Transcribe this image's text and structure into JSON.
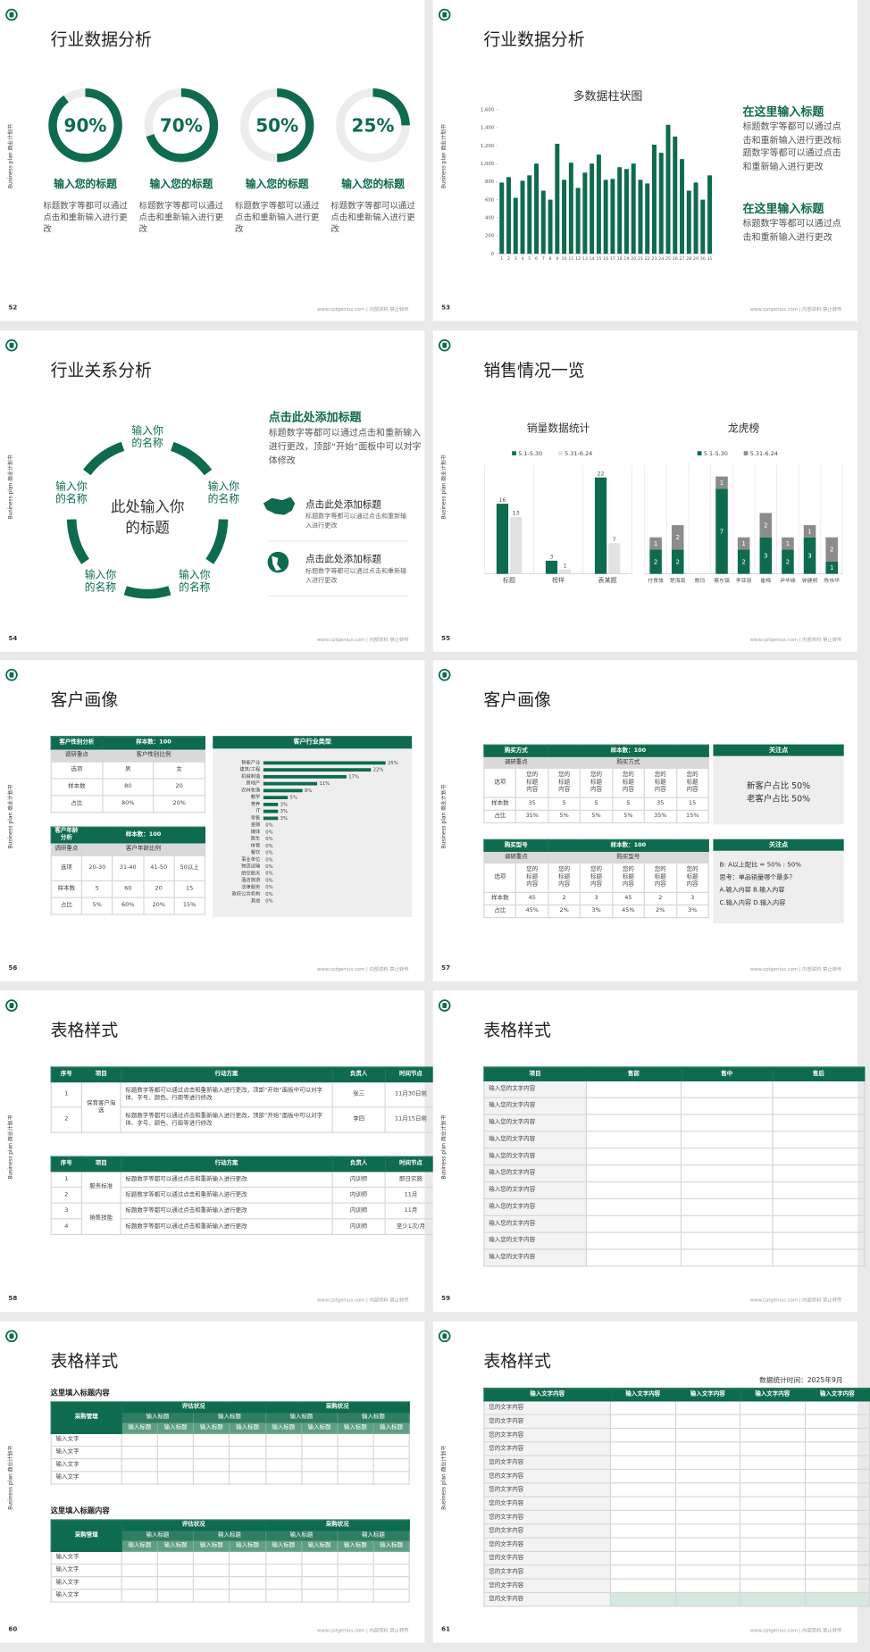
{
  "common": {
    "side_label": "Business plan 商业计划书",
    "footer": "www.cptgenius.com | 内部资料 禁止转传"
  },
  "slides": [
    {
      "page": 52,
      "title": "行业数据分析",
      "items": [
        {
          "title": "输入您的标题",
          "text": "标题数字等都可以通过点击和重新输入进行更改"
        },
        {
          "title": "输入您的标题",
          "text": "标题数字等都可以通过点击和重新输入进行更改"
        },
        {
          "title": "输入您的标题",
          "text": "标题数字等都可以通过点击和重新输入进行更改"
        },
        {
          "title": "输入您的标题",
          "text": "标题数字等都可以通过点击和重新输入进行更改"
        }
      ]
    },
    {
      "page": 53,
      "title": "行业数据分析",
      "blocks": [
        {
          "title": "在这里输入标题",
          "text": "标题数字等都可以通过点击和重新输入进行更改标题数字等都可以通过点击和重新输入进行更改"
        },
        {
          "title": "在这里输入标题",
          "text": "标题数字等都可以通过点击和重新输入进行更改"
        }
      ]
    },
    {
      "page": 54,
      "title": "行业关系分析",
      "center": "此处输入你的标题",
      "nodes": [
        "输入你的名称",
        "输入你的名称",
        "输入你的名称",
        "输入你的名称",
        "输入你的名称"
      ],
      "heading": "点击此处添加标题",
      "text": "标题数字等都可以通过点击和重新输入进行更改，顶部“开始”面板中可以对字体修改",
      "items": [
        {
          "title": "点击此处添加标题",
          "text": "标题数字等都可以通过点击和重新输入进行更改"
        },
        {
          "title": "点击此处添加标题",
          "text": "标题数字等都可以通过点击和重新输入进行更改"
        }
      ]
    },
    {
      "page": 55,
      "title": "销售情况一览"
    },
    {
      "page": 56,
      "title": "客户画像",
      "tables": [
        {
          "name": "客户性别分析",
          "sample": "样本数：100",
          "focus_label": "调研重点",
          "focus": "客户性别比例",
          "rows": [
            [
              "选项",
              "男",
              "女"
            ],
            [
              "样本数",
              "80",
              "20"
            ],
            [
              "占比",
              "80%",
              "20%"
            ]
          ]
        },
        {
          "name": "客户年龄分析",
          "sample": "样本数：100",
          "focus_label": "调研重点",
          "focus": "客户年龄比例",
          "rows": [
            [
              "选项",
              "20-30",
              "31-40",
              "41-50",
              "50以上"
            ],
            [
              "样本数",
              "5",
              "60",
              "20",
              "15"
            ],
            [
              "占比",
              "5%",
              "60%",
              "20%",
              "15%"
            ]
          ]
        }
      ]
    },
    {
      "page": 57,
      "title": "客户画像",
      "tables": [
        {
          "name": "购买方式",
          "sample": "样本数：100",
          "focus_label": "调研重点",
          "focus": "购买方式",
          "rows": [
            [
              "选项",
              "您的标题内容",
              "您的标题内容",
              "您的标题内容",
              "您的标题内容",
              "您的标题内容",
              "您的标题内容"
            ],
            [
              "样本数",
              "35",
              "5",
              "5",
              "5",
              "35",
              "15"
            ],
            [
              "占比",
              "35%",
              "5%",
              "5%",
              "5%",
              "35%",
              "15%"
            ]
          ]
        },
        {
          "name": "购买型号",
          "sample": "样本数：100",
          "focus_label": "调研重点",
          "focus": "购买型号",
          "rows": [
            [
              "选项",
              "您的标题内容",
              "您的标题内容",
              "您的标题内容",
              "您的标题内容",
              "您的标题内容",
              "您的标题内容"
            ],
            [
              "样本数",
              "45",
              "2",
              "3",
              "45",
              "2",
              "3"
            ],
            [
              "占比",
              "45%",
              "2%",
              "3%",
              "45%",
              "2%",
              "3%"
            ]
          ]
        }
      ],
      "notes": [
        {
          "title": "关注点",
          "lines": [
            "新客户占比 50%",
            "老客户占比 50%"
          ]
        },
        {
          "title": "关注点",
          "lines": [
            "B: A以上配比 = 50% : 50%",
            "思考：单品销量哪个最多？",
            "A.输入内容 B.输入内容",
            "C.输入内容 D.输入内容"
          ]
        }
      ]
    },
    {
      "page": 58,
      "title": "表格样式",
      "tables": [
        {
          "header": [
            "序号",
            "项目",
            "行动方案",
            "负责人",
            "时间节点"
          ],
          "groups": [
            {
              "name": "保育客户淘选",
              "rows": [
                [
                  "1",
                  "标题数字等都可以通过点击和重新输入进行更改，顶部“开始”面板中可以对字体、字号、颜色、行距等进行修改",
                  "张三",
                  "11月30日前"
                ],
                [
                  "2",
                  "标题数字等都可以通过点击和重新输入进行更改，顶部“开始”面板中可以对字体、字号、颜色、行距等进行修改",
                  "李四",
                  "11月15日前"
                ]
              ]
            }
          ]
        },
        {
          "header": [
            "序号",
            "项目",
            "行动方案",
            "负责人",
            "时间节点"
          ],
          "groups": [
            {
              "name": "服务标准",
              "rows": [
                [
                  "1",
                  "标题数字等都可以通过点击和重新输入进行更改",
                  "内训师",
                  "即日实施"
                ],
                [
                  "2",
                  "标题数字等都可以通过点击和重新输入进行更改",
                  "内训师",
                  "11月"
                ]
              ]
            },
            {
              "name": "销售技能",
              "rows": [
                [
                  "3",
                  "标题数字等都可以通过点击和重新输入进行更改",
                  "内训师",
                  "11月"
                ],
                [
                  "4",
                  "标题数字等都可以通过点击和重新输入进行更改",
                  "内训师",
                  "至少1次/月"
                ]
              ]
            }
          ]
        }
      ]
    },
    {
      "page": 59,
      "title": "表格样式",
      "header": [
        "项目",
        "售前",
        "售中",
        "售后"
      ],
      "rows": [
        "输入您的文字内容",
        "输入您的文字内容",
        "输入您的文字内容",
        "输入您的文字内容",
        "输入您的文字内容",
        "输入您的文字内容",
        "输入您的文字内容",
        "输入您的文字内容",
        "输入您的文字内容",
        "输入您的文字内容",
        "输入您的文字内容"
      ]
    },
    {
      "page": 60,
      "title": "表格样式",
      "tables": [
        {
          "caption": "这里填入标题内容",
          "corner": "采购管理",
          "groups": [
            "评估状况",
            "采购状况"
          ],
          "subheads": [
            "输入标题",
            "输入标题",
            "输入标题",
            "输入标题"
          ],
          "heads": [
            "输入标题",
            "输入标题",
            "输入标题",
            "输入标题",
            "输入标题",
            "输入标题",
            "输入标题",
            "输入标题"
          ],
          "rows": [
            "输入文字",
            "输入文字",
            "输入文字",
            "输入文字"
          ]
        },
        {
          "caption": "这里填入标题内容",
          "corner": "采购管理",
          "groups": [
            "评估状况",
            "采购状况"
          ],
          "subheads": [
            "输入标题",
            "输入标题",
            "输入标题",
            "输入标题"
          ],
          "heads": [
            "输入标题",
            "输入标题",
            "输入标题",
            "输入标题",
            "输入标题",
            "输入标题",
            "输入标题",
            "输入标题"
          ],
          "rows": [
            "输入文字",
            "输入文字",
            "输入文字",
            "输入文字"
          ]
        }
      ]
    },
    {
      "page": 61,
      "title": "表格样式",
      "note": "数据统计时间：2025年9月",
      "header": [
        "输入文字内容",
        "输入文字内容",
        "输入文字内容",
        "输入文字内容",
        "输入文字内容"
      ],
      "rows": [
        "您的文字内容",
        "您的文字内容",
        "您的文字内容",
        "您的文字内容",
        "您的文字内容",
        "您的文字内容",
        "您的文字内容",
        "您的文字内容",
        "您的文字内容",
        "您的文字内容",
        "您的文字内容",
        "您的文字内容",
        "您的文字内容",
        "您的文字内容",
        "您的文字内容"
      ]
    }
  ],
  "chart_data": [
    {
      "type": "progress_ring",
      "values": [
        90,
        70,
        50,
        25
      ],
      "value_labels": [
        "90%",
        "70%",
        "50%",
        "25%"
      ],
      "ylim": [
        0,
        100
      ],
      "color": "#0e6b4f"
    },
    {
      "type": "bar",
      "title": "多数据柱状图",
      "categories": [
        "1",
        "2",
        "3",
        "4",
        "5",
        "6",
        "7",
        "8",
        "9",
        "10",
        "11",
        "12",
        "13",
        "14",
        "15",
        "16",
        "17",
        "18",
        "19",
        "20",
        "21",
        "22",
        "23",
        "24",
        "25",
        "26",
        "27",
        "28",
        "29",
        "30",
        "31"
      ],
      "values": [
        790,
        850,
        620,
        810,
        870,
        1000,
        700,
        600,
        1220,
        820,
        1010,
        730,
        900,
        1000,
        1100,
        820,
        830,
        960,
        940,
        1000,
        820,
        780,
        1210,
        1120,
        1430,
        1300,
        1050,
        700,
        790,
        600,
        870
      ],
      "color": "#0e6b4f",
      "ylim": [
        0,
        1600
      ],
      "yticks": [
        0,
        200,
        400,
        600,
        800,
        {
          "value": 1000,
          "label": "1,000"
        },
        {
          "value": 1200,
          "label": "1,200"
        },
        {
          "value": 1400,
          "label": "1,400"
        },
        {
          "value": 1600,
          "label": "1,600"
        }
      ]
    },
    {
      "type": "grouped_bar",
      "title": "销量数据统计",
      "categories": [
        "标题",
        "榜样",
        "表某题"
      ],
      "series": [
        {
          "name": "5.1-5.30",
          "color": "#0e6b4f",
          "values": [
            16,
            3,
            22
          ]
        },
        {
          "name": "5.31-6.24",
          "color": "#e2e2e2",
          "values": [
            13,
            1,
            7
          ]
        }
      ],
      "ylim": [
        0,
        25
      ]
    },
    {
      "type": "stacked_bar",
      "title": "龙虎榜",
      "categories": [
        "付食旅",
        "楚海南",
        "詹玛",
        "蔡东镇",
        "李亚丽",
        "崔梅",
        "尹毕缘",
        "钟建明",
        "陈伟华"
      ],
      "series": [
        {
          "name": "5.1-5.30",
          "color": "#0e6b4f",
          "values": [
            2,
            2,
            0,
            7,
            2,
            3,
            2,
            3,
            1
          ]
        },
        {
          "name": "5.31-6.24",
          "color": "#8c8c8c",
          "values": [
            1,
            2,
            0,
            1,
            1,
            2,
            1,
            1,
            2
          ]
        }
      ],
      "ylim": [
        0,
        9
      ]
    },
    {
      "type": "hbar",
      "title": "客户行业类型",
      "categories": [
        "智能产业",
        "建筑/工程",
        "机械制造",
        "房地产",
        "农林牧渔",
        "教学",
        "育养",
        "IT",
        "零售",
        "金融",
        "媒体",
        "医生",
        "体育",
        "餐饮",
        "事业单位",
        "物流运输",
        "航空航天",
        "酒店旅游",
        "法律服务",
        "政府公共机构",
        "其他"
      ],
      "values": [
        25,
        22,
        17,
        11,
        8,
        5,
        3,
        3,
        3,
        0,
        0,
        0,
        0,
        0,
        0,
        0,
        0,
        0,
        0,
        0,
        0
      ],
      "value_labels": [
        "25%",
        "22%",
        "17%",
        "11%",
        "8%",
        "5%",
        "3%",
        "3%",
        "3%",
        "0%",
        "0%",
        "0%",
        "0%",
        "0%",
        "0%",
        "0%",
        "0%",
        "0%",
        "0%",
        "0%",
        "0%"
      ],
      "xlim": [
        0,
        25
      ],
      "color": "#0e6b4f"
    }
  ]
}
